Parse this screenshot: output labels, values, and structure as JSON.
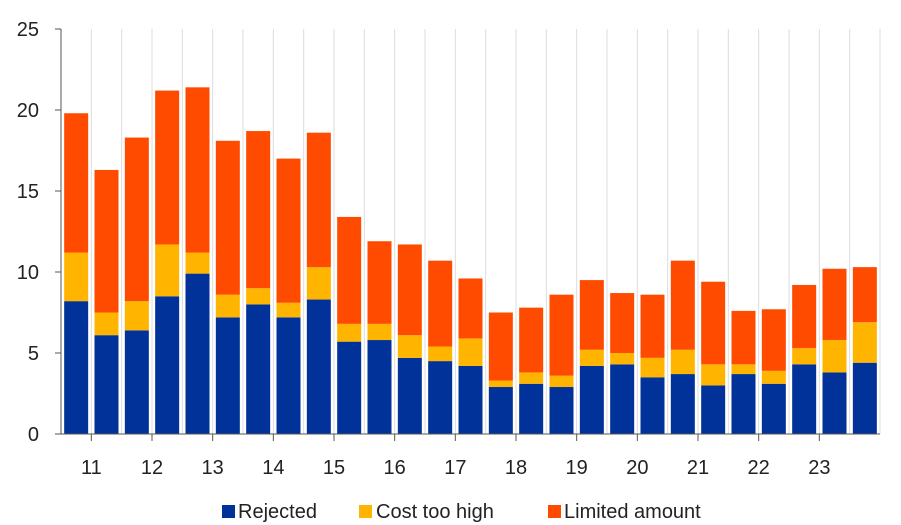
{
  "chart_data": {
    "type": "bar",
    "stacked": true,
    "x_tick_labels": [
      "11",
      "12",
      "13",
      "14",
      "15",
      "16",
      "17",
      "18",
      "19",
      "20",
      "21",
      "22",
      "23"
    ],
    "ylim": [
      0,
      25
    ],
    "y_ticks": [
      0,
      5,
      10,
      15,
      20,
      25
    ],
    "grid": "vertical",
    "legend_position": "bottom",
    "series": [
      {
        "name": "Rejected",
        "color": "#003299",
        "values": [
          8.2,
          6.1,
          6.4,
          8.5,
          9.9,
          7.2,
          8.0,
          7.2,
          8.3,
          5.7,
          5.8,
          4.7,
          4.5,
          4.2,
          2.9,
          3.1,
          2.9,
          4.2,
          4.3,
          3.5,
          3.7,
          3.0,
          3.7,
          3.1,
          4.3,
          3.8,
          4.4
        ]
      },
      {
        "name": "Cost too high",
        "color": "#FFB400",
        "values": [
          3.0,
          1.4,
          1.8,
          3.2,
          1.3,
          1.4,
          1.0,
          0.9,
          2.0,
          1.1,
          1.0,
          1.4,
          0.9,
          1.7,
          0.4,
          0.7,
          0.7,
          1.0,
          0.7,
          1.2,
          1.5,
          1.3,
          0.6,
          0.8,
          1.0,
          2.0,
          2.5
        ]
      },
      {
        "name": "Limited amount",
        "color": "#FF4B00",
        "values": [
          8.6,
          8.8,
          10.1,
          9.5,
          10.2,
          9.5,
          9.7,
          8.9,
          8.3,
          6.6,
          5.1,
          5.6,
          5.3,
          3.7,
          4.2,
          4.0,
          5.0,
          4.3,
          3.7,
          3.9,
          5.5,
          5.1,
          3.3,
          3.8,
          3.9,
          4.4,
          3.4
        ]
      }
    ]
  }
}
